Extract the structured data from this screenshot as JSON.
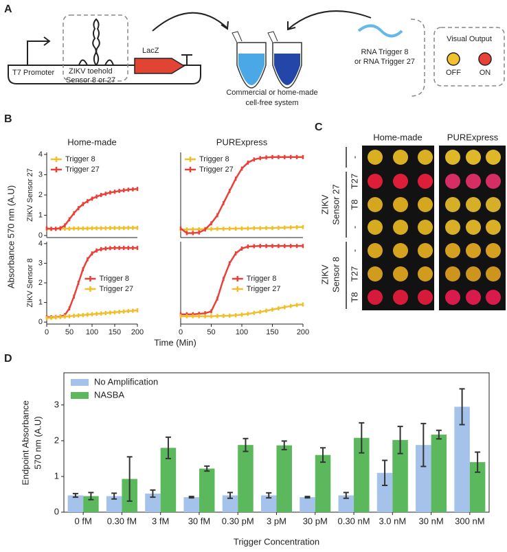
{
  "panel_a": {
    "label": "A",
    "promoter": "T7 Promoter",
    "sensor": [
      "ZIKV toehold",
      "Sensor  8 or 27"
    ],
    "gene": "LacZ",
    "system": [
      "Commercial or home-made",
      "cell-free system"
    ],
    "trigger": [
      "RNA Trigger 8",
      "or RNA Trigger 27"
    ],
    "visual_output": "Visual Output",
    "off": "OFF",
    "on": "ON"
  },
  "panel_b": {
    "label": "B",
    "columns": [
      "Home-made",
      "PURExpress"
    ],
    "rows": [
      "ZIKV Sensor 27",
      "ZIKV Sensor 8"
    ],
    "ylabel": "Absorbance 570 nm (A.U)",
    "xlabel": "Time (Min)"
  },
  "panel_c": {
    "label": "C",
    "columns": [
      "Home-made",
      "PURExpress"
    ],
    "rows": [
      "-",
      "T27",
      "T8",
      "-",
      "-",
      "T27",
      "T8"
    ],
    "groups": [
      [
        "ZIKV",
        "Sensor 27"
      ],
      [
        "ZIKV",
        "Sensor 8"
      ]
    ],
    "well_colors": [
      [
        "#e6b823",
        "#e8203c",
        "#e0b020",
        "#e2b422",
        "#e0ac22",
        "#dca420",
        "#e01c3c"
      ],
      [
        "#eac22a",
        "#e0306a",
        "#e2b82a",
        "#e4b828",
        "#e0a824",
        "#d89c20",
        "#e41c50"
      ]
    ]
  },
  "chart_data": [
    {
      "type": "line",
      "legend": "upper left",
      "xlim": [
        0,
        200
      ],
      "ylim": [
        -0.1,
        4.1
      ],
      "yticks": [
        0,
        1,
        2,
        3,
        4
      ],
      "x": [
        0,
        10,
        20,
        30,
        40,
        50,
        60,
        70,
        80,
        90,
        100,
        110,
        120,
        130,
        140,
        150,
        160,
        170,
        180,
        190,
        200
      ],
      "series": [
        {
          "name": "Trigger 8",
          "color": "#f0c02a",
          "values": [
            0.32,
            0.33,
            0.33,
            0.34,
            0.34,
            0.34,
            0.35,
            0.35,
            0.35,
            0.35,
            0.36,
            0.36,
            0.36,
            0.36,
            0.37,
            0.37,
            0.37,
            0.37,
            0.38,
            0.38,
            0.38
          ]
        },
        {
          "name": "Trigger 27",
          "color": "#e8413a",
          "values": [
            0.35,
            0.33,
            0.33,
            0.36,
            0.5,
            0.8,
            1.1,
            1.35,
            1.55,
            1.7,
            1.82,
            1.92,
            2.0,
            2.06,
            2.12,
            2.16,
            2.2,
            2.23,
            2.26,
            2.28,
            2.3
          ]
        }
      ]
    },
    {
      "type": "line",
      "legend": "upper left",
      "xlim": [
        0,
        200
      ],
      "ylim": [
        -0.1,
        4.1
      ],
      "x": [
        0,
        10,
        20,
        30,
        40,
        50,
        60,
        70,
        80,
        90,
        100,
        110,
        120,
        130,
        140,
        150,
        160,
        170,
        180,
        190,
        200
      ],
      "series": [
        {
          "name": "Trigger 8",
          "color": "#f0c02a",
          "values": [
            0.3,
            0.3,
            0.31,
            0.31,
            0.32,
            0.32,
            0.33,
            0.33,
            0.34,
            0.34,
            0.35,
            0.35,
            0.36,
            0.36,
            0.37,
            0.37,
            0.38,
            0.39,
            0.4,
            0.41,
            0.42
          ]
        },
        {
          "name": "Trigger 27",
          "color": "#e8413a",
          "values": [
            0.35,
            0.12,
            0.12,
            0.15,
            0.3,
            0.6,
            1.0,
            1.6,
            2.2,
            2.8,
            3.3,
            3.6,
            3.75,
            3.82,
            3.85,
            3.87,
            3.87,
            3.87,
            3.87,
            3.87,
            3.87
          ]
        }
      ]
    },
    {
      "type": "line",
      "legend": "center right",
      "xlim": [
        0,
        200
      ],
      "ylim": [
        -0.1,
        4.1
      ],
      "yticks": [
        0,
        1,
        2,
        3,
        4
      ],
      "xticks": [
        0,
        50,
        100,
        150,
        200
      ],
      "x": [
        0,
        10,
        20,
        30,
        40,
        50,
        60,
        70,
        80,
        90,
        100,
        110,
        120,
        130,
        140,
        150,
        160,
        170,
        180,
        190,
        200
      ],
      "series": [
        {
          "name": "Trigger 8",
          "color": "#e8413a",
          "values": [
            0.25,
            0.25,
            0.26,
            0.28,
            0.35,
            0.7,
            1.3,
            2.0,
            2.7,
            3.2,
            3.5,
            3.65,
            3.72,
            3.75,
            3.77,
            3.78,
            3.78,
            3.78,
            3.78,
            3.78,
            3.78
          ]
        },
        {
          "name": "Trigger 27",
          "color": "#f0c02a",
          "values": [
            0.2,
            0.22,
            0.24,
            0.26,
            0.28,
            0.3,
            0.32,
            0.34,
            0.36,
            0.38,
            0.4,
            0.42,
            0.44,
            0.46,
            0.48,
            0.5,
            0.52,
            0.54,
            0.56,
            0.58,
            0.6
          ]
        }
      ]
    },
    {
      "type": "line",
      "legend": "center right",
      "xlim": [
        0,
        200
      ],
      "ylim": [
        -0.1,
        4.1
      ],
      "xticks": [
        0,
        50,
        100,
        150,
        200
      ],
      "x": [
        0,
        10,
        20,
        30,
        40,
        50,
        60,
        70,
        80,
        90,
        100,
        110,
        120,
        130,
        140,
        150,
        160,
        170,
        180,
        190,
        200
      ],
      "series": [
        {
          "name": "Trigger 8",
          "color": "#e8413a",
          "values": [
            0.4,
            0.4,
            0.4,
            0.42,
            0.45,
            0.55,
            1.2,
            2.2,
            3.0,
            3.5,
            3.75,
            3.85,
            3.87,
            3.88,
            3.88,
            3.88,
            3.88,
            3.88,
            3.88,
            3.88,
            3.88
          ]
        },
        {
          "name": "Trigger 27",
          "color": "#f0c02a",
          "values": [
            0.3,
            0.3,
            0.3,
            0.3,
            0.3,
            0.3,
            0.31,
            0.32,
            0.33,
            0.35,
            0.38,
            0.42,
            0.47,
            0.52,
            0.58,
            0.64,
            0.7,
            0.76,
            0.82,
            0.87,
            0.9
          ]
        }
      ]
    },
    {
      "type": "bar",
      "label": "D",
      "legend": "upper left",
      "ylabel": [
        "Endpoint Absorbance",
        "570 nm (A.U)"
      ],
      "xlabel": "Trigger Concentration",
      "ylim": [
        0,
        3.9
      ],
      "yticks": [
        0,
        1,
        2,
        3
      ],
      "categories": [
        "0 fM",
        "0.30 fM",
        "3 fM",
        "30 fM",
        "0.30 pM",
        "3 pM",
        "30 pM",
        "0.30 nM",
        "3.0 nM",
        "30 nM",
        "300 nM"
      ],
      "series": [
        {
          "name": "No Amplification",
          "color": "#a4c2ea",
          "values": [
            0.47,
            0.45,
            0.52,
            0.42,
            0.47,
            0.47,
            0.42,
            0.47,
            1.1,
            1.88,
            2.95
          ],
          "errors": [
            0.05,
            0.08,
            0.1,
            0.02,
            0.08,
            0.07,
            0.02,
            0.08,
            0.35,
            0.6,
            0.5
          ]
        },
        {
          "name": "NASBA",
          "color": "#5cb85c",
          "values": [
            0.45,
            0.93,
            1.8,
            1.22,
            1.88,
            1.87,
            1.6,
            2.08,
            2.02,
            2.17,
            1.4
          ],
          "errors": [
            0.1,
            0.62,
            0.3,
            0.07,
            0.18,
            0.12,
            0.2,
            0.42,
            0.38,
            0.12,
            0.28
          ]
        }
      ]
    }
  ]
}
